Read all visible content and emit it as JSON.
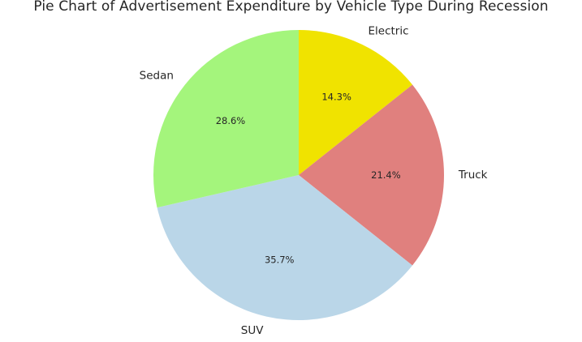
{
  "chart_data": {
    "type": "pie",
    "title": "Pie Chart of Advertisement Expenditure by Vehicle Type During Recession",
    "start_angle_deg": 90,
    "direction": "clockwise",
    "slices": [
      {
        "label": "Electric",
        "value": 14.3,
        "pct_text": "14.3%",
        "color": "#f0e300"
      },
      {
        "label": "Truck",
        "value": 21.4,
        "pct_text": "21.4%",
        "color": "#e0807e"
      },
      {
        "label": "SUV",
        "value": 35.7,
        "pct_text": "35.7%",
        "color": "#bad6e8"
      },
      {
        "label": "Sedan",
        "value": 28.6,
        "pct_text": "28.6%",
        "color": "#a4f57c"
      }
    ]
  }
}
